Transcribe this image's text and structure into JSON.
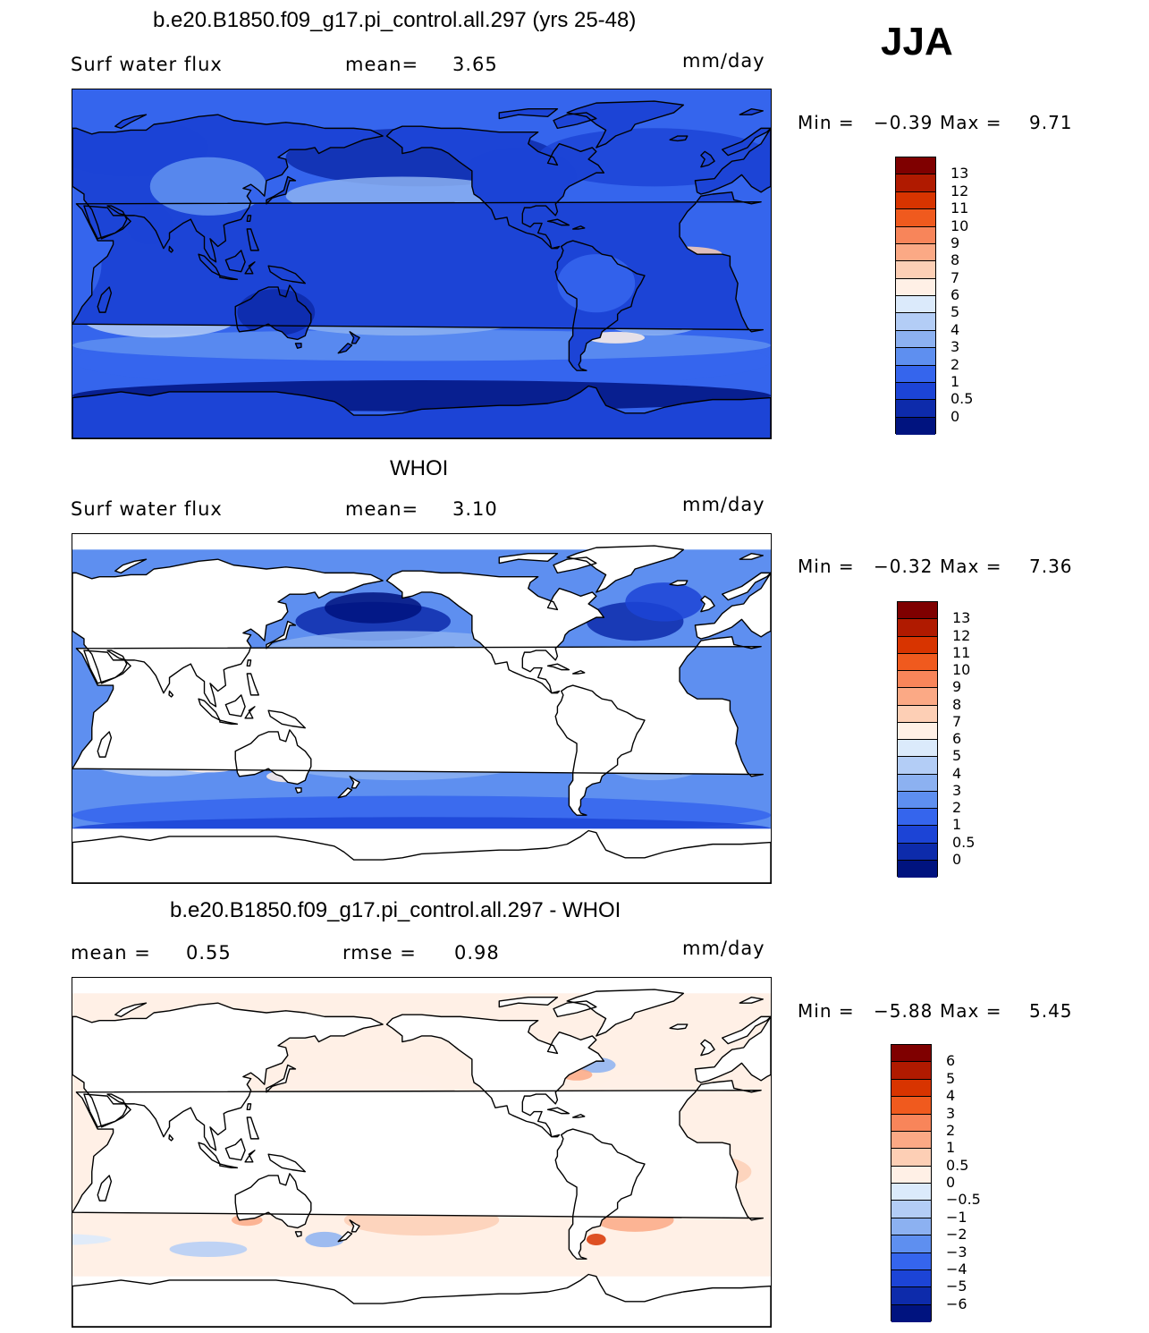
{
  "season": "JJA",
  "panels": [
    {
      "id": "model",
      "title": "b.e20.B1850.f09_g17.pi_control.all.297 (yrs 25-48)",
      "variable": "Surf water flux",
      "stat1_label": "mean=",
      "stat1_value": "3.65",
      "stat2_label": "",
      "stat2_value": "",
      "units": "mm/day",
      "min_label": "Min =",
      "min_value": "−0.39",
      "max_label": "Max =",
      "max_value": "9.71",
      "colorbar_labels": [
        "13",
        "12",
        "11",
        "10",
        "9",
        "8",
        "7",
        "6",
        "5",
        "4",
        "3",
        "2",
        "1",
        "0.5",
        "0"
      ],
      "colorbar_colors": [
        "#7f0000",
        "#b01a00",
        "#d83400",
        "#f05a1e",
        "#f8855a",
        "#fba985",
        "#fdcfb5",
        "#fff0e6",
        "#dbeafb",
        "#b3cdf6",
        "#8cb1f1",
        "#5e8ff0",
        "#3565ed",
        "#1c44d6",
        "#0d2bab",
        "#00137f"
      ],
      "map_style": "model"
    },
    {
      "id": "obs",
      "title": "WHOI",
      "variable": "Surf water flux",
      "stat1_label": "mean=",
      "stat1_value": "3.10",
      "stat2_label": "",
      "stat2_value": "",
      "units": "mm/day",
      "min_label": "Min =",
      "min_value": "−0.32",
      "max_label": "Max =",
      "max_value": "7.36",
      "colorbar_labels": [
        "13",
        "12",
        "11",
        "10",
        "9",
        "8",
        "7",
        "6",
        "5",
        "4",
        "3",
        "2",
        "1",
        "0.5",
        "0"
      ],
      "colorbar_colors": [
        "#7f0000",
        "#b01a00",
        "#d83400",
        "#f05a1e",
        "#f8855a",
        "#fba985",
        "#fdcfb5",
        "#fff0e6",
        "#dbeafb",
        "#b3cdf6",
        "#8cb1f1",
        "#5e8ff0",
        "#3565ed",
        "#1c44d6",
        "#0d2bab",
        "#00137f"
      ],
      "map_style": "obs"
    },
    {
      "id": "diff",
      "title": "b.e20.B1850.f09_g17.pi_control.all.297 - WHOI",
      "variable": "",
      "stat1_label": "mean =",
      "stat1_value": "0.55",
      "stat2_label": "rmse =",
      "stat2_value": "0.98",
      "units": "mm/day",
      "min_label": "Min =",
      "min_value": "−5.88",
      "max_label": "Max =",
      "max_value": "5.45",
      "colorbar_labels": [
        "6",
        "5",
        "4",
        "3",
        "2",
        "1",
        "0.5",
        "0",
        "−0.5",
        "−1",
        "−2",
        "−3",
        "−4",
        "−5",
        "−6"
      ],
      "colorbar_colors": [
        "#7f0000",
        "#b01a00",
        "#d83400",
        "#f05a1e",
        "#f8855a",
        "#fba985",
        "#fdcfb5",
        "#fff0e6",
        "#dbeafb",
        "#b3cdf6",
        "#8cb1f1",
        "#5e8ff0",
        "#3565ed",
        "#1c44d6",
        "#0d2bab",
        "#00137f"
      ],
      "map_style": "diff"
    }
  ]
}
